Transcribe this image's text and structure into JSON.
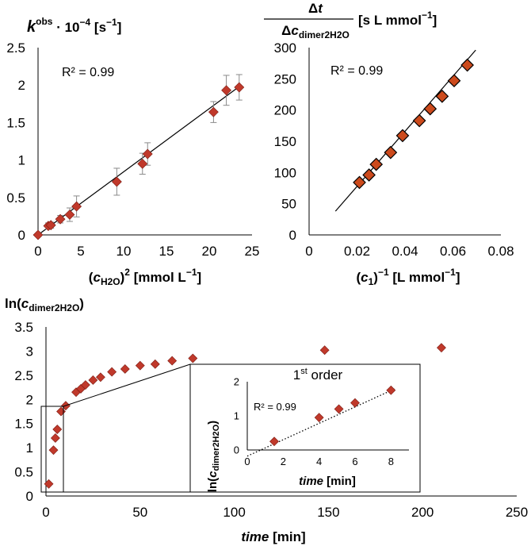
{
  "chart_data": [
    {
      "type": "scatter",
      "title": "",
      "ylabel": {
        "k": "k",
        "sup": "obs",
        "rest": " · 10",
        "exp": "−4",
        "unit": " [s",
        "unit_exp": "−1",
        "close": "]"
      },
      "xlabel": {
        "open": "(",
        "c": "c",
        "sub": "H2O",
        "close": ")",
        "sup": "2",
        "unit": " [mmol L",
        "unit_exp": "−1",
        "end": "]"
      },
      "xlim": [
        0,
        25
      ],
      "ylim": [
        0,
        2.5
      ],
      "xticks": [
        "0",
        "5",
        "10",
        "15",
        "20",
        "25"
      ],
      "yticks": [
        "0",
        "0.5",
        "1",
        "1.5",
        "2",
        "2.5"
      ],
      "annotation": "R² = 0.99",
      "series": [
        {
          "marker": "diamond",
          "color": "#c0392b",
          "x": [
            0,
            1.2,
            1.5,
            2.6,
            3.7,
            4.5,
            9.2,
            12.2,
            12.8,
            20.5,
            22.0,
            23.5
          ],
          "y": [
            0,
            0.12,
            0.13,
            0.21,
            0.27,
            0.38,
            0.71,
            0.95,
            1.08,
            1.64,
            1.93,
            1.97
          ],
          "err": [
            0,
            0.04,
            0.04,
            0.05,
            0.09,
            0.14,
            0.18,
            0.14,
            0.15,
            0.14,
            0.2,
            0.17
          ]
        }
      ],
      "fit_line": {
        "x": [
          0,
          23.5
        ],
        "y": [
          0,
          1.98
        ]
      }
    },
    {
      "type": "scatter",
      "title": "",
      "ylabel": {
        "num": "Δt",
        "den": "Δc",
        "sub": "dimer2H2O",
        "unit": " [s L mmol",
        "unit_exp": "−1",
        "close": "]"
      },
      "xlabel": {
        "open": "(",
        "c": "c",
        "sub": "1",
        "close": ")",
        "sup": "−1",
        "unit": " [L mmol",
        "unit_exp": "−1",
        "end": "]"
      },
      "xlim": [
        0,
        0.08
      ],
      "ylim": [
        0,
        300
      ],
      "xticks": [
        "0",
        "0.02",
        "0.04",
        "0.06",
        "0.08"
      ],
      "yticks": [
        "0",
        "50",
        "100",
        "150",
        "200",
        "250",
        "300"
      ],
      "annotation": "R² = 0.99",
      "series": [
        {
          "marker": "diamond",
          "color": "#cc4a1c",
          "x": [
            0.021,
            0.025,
            0.028,
            0.034,
            0.039,
            0.046,
            0.0505,
            0.0555,
            0.0605,
            0.066
          ],
          "y": [
            84,
            96,
            113,
            132,
            159,
            183,
            202,
            222,
            247,
            272
          ]
        }
      ],
      "fit_line": {
        "x": [
          0.011,
          0.0695
        ],
        "y": [
          38,
          296
        ]
      }
    },
    {
      "type": "scatter",
      "title": "",
      "ylabel": {
        "pre": "ln(",
        "c": "c",
        "sub": "dimer2H2O",
        "close": ")"
      },
      "xlabel": {
        "time": "time",
        "unit": " [min]"
      },
      "xlim": [
        0,
        250
      ],
      "ylim": [
        0,
        3.5
      ],
      "xticks": [
        "0",
        "50",
        "100",
        "150",
        "200",
        "250"
      ],
      "yticks": [
        "0",
        "0.5",
        "1",
        "1.5",
        "2",
        "2.5",
        "3",
        "3.5"
      ],
      "series": [
        {
          "marker": "diamond",
          "color": "#c0392b",
          "x": [
            1.5,
            4,
            5,
            6,
            8,
            10.5,
            16,
            18.5,
            21,
            25,
            29,
            35,
            42,
            50,
            58,
            67,
            78,
            148,
            210
          ],
          "y": [
            0.25,
            0.95,
            1.2,
            1.38,
            1.75,
            1.87,
            2.15,
            2.22,
            2.3,
            2.4,
            2.46,
            2.57,
            2.63,
            2.7,
            2.73,
            2.8,
            2.85,
            3.02,
            3.07
          ]
        }
      ]
    },
    {
      "type": "scatter",
      "title": {
        "pre": "1",
        "sup": "st",
        "post": " order"
      },
      "ylabel": {
        "pre": "ln(",
        "c": "c",
        "sub": "dimer2H2O",
        "close": ")"
      },
      "xlabel": {
        "time": "time",
        "unit": " [min]"
      },
      "xlim": [
        0,
        9
      ],
      "ylim": [
        0,
        2
      ],
      "xticks": [
        "0",
        "2",
        "4",
        "6",
        "8"
      ],
      "yticks": [
        "0",
        "1",
        "2"
      ],
      "annotation": "R² = 0.99",
      "series": [
        {
          "marker": "diamond",
          "color": "#c0392b",
          "x": [
            1.5,
            4,
            5.1,
            6,
            8
          ],
          "y": [
            0.25,
            0.95,
            1.2,
            1.38,
            1.75
          ]
        }
      ],
      "fit_line": {
        "x": [
          0,
          8.2
        ],
        "y": [
          -0.18,
          1.79
        ],
        "style": "dotted"
      }
    }
  ]
}
